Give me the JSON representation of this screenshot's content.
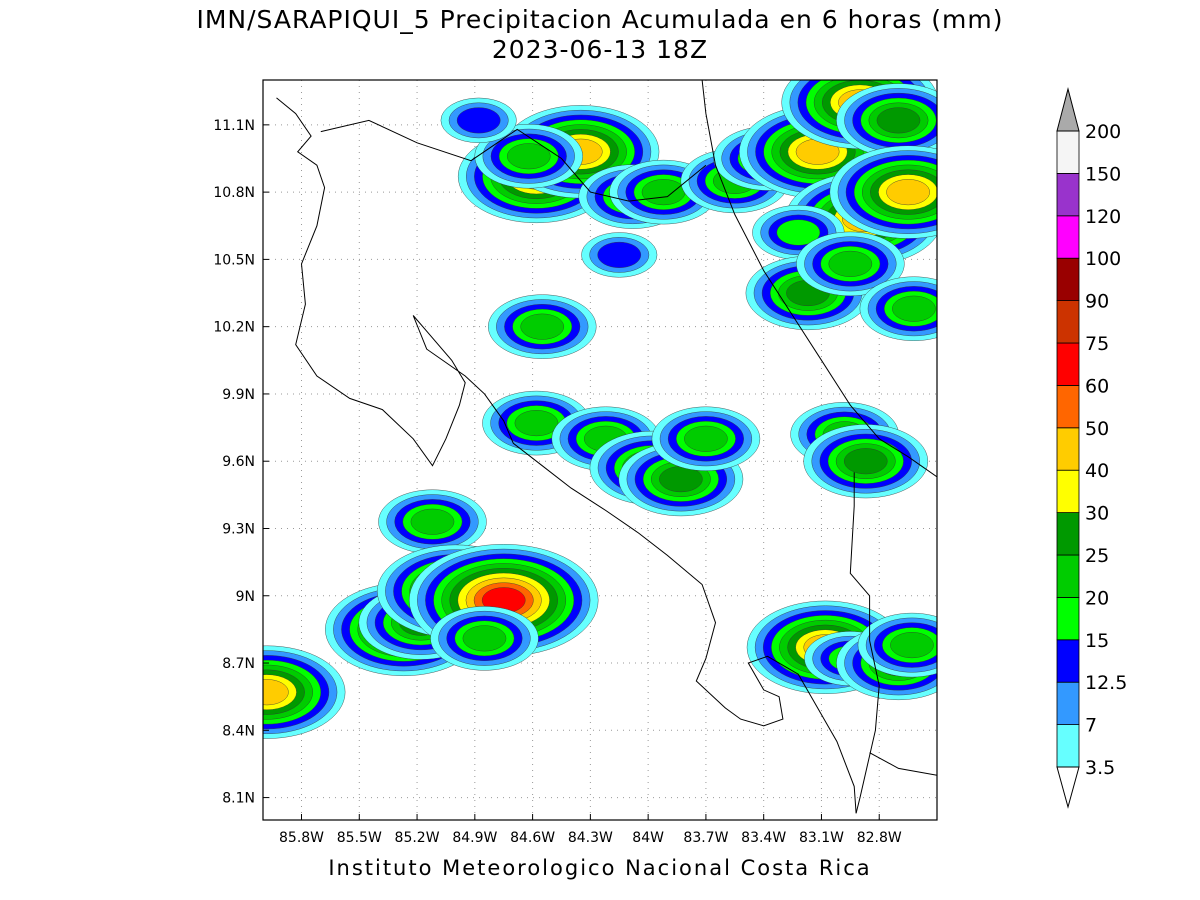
{
  "title": {
    "line1": "IMN/SARAPIQUI_5 Precipitacion Acumulada en 6 horas (mm)",
    "line2": "2023-06-13 18Z"
  },
  "footer": "Instituto Meteorologico Nacional Costa Rica",
  "map": {
    "lon_range": [
      -86.0,
      -82.5
    ],
    "lat_range": [
      8.0,
      11.3
    ],
    "lon_ticks": [
      {
        "value": -85.8,
        "label": "85.8W"
      },
      {
        "value": -85.5,
        "label": "85.5W"
      },
      {
        "value": -85.2,
        "label": "85.2W"
      },
      {
        "value": -84.9,
        "label": "84.9W"
      },
      {
        "value": -84.6,
        "label": "84.6W"
      },
      {
        "value": -84.3,
        "label": "84.3W"
      },
      {
        "value": -84.0,
        "label": "84W"
      },
      {
        "value": -83.7,
        "label": "83.7W"
      },
      {
        "value": -83.4,
        "label": "83.4W"
      },
      {
        "value": -83.1,
        "label": "83.1W"
      },
      {
        "value": -82.8,
        "label": "82.8W"
      }
    ],
    "lat_ticks": [
      {
        "value": 8.1,
        "label": "8.1N"
      },
      {
        "value": 8.4,
        "label": "8.4N"
      },
      {
        "value": 8.7,
        "label": "8.7N"
      },
      {
        "value": 9.0,
        "label": "9N"
      },
      {
        "value": 9.3,
        "label": "9.3N"
      },
      {
        "value": 9.6,
        "label": "9.6N"
      },
      {
        "value": 9.9,
        "label": "9.9N"
      },
      {
        "value": 10.2,
        "label": "10.2N"
      },
      {
        "value": 10.5,
        "label": "10.5N"
      },
      {
        "value": 10.8,
        "label": "10.8N"
      },
      {
        "value": 11.1,
        "label": "11.1N"
      }
    ],
    "coastline": [
      [
        -85.93,
        11.22
      ],
      [
        -85.83,
        11.15
      ],
      [
        -85.75,
        11.05
      ],
      [
        -85.82,
        10.98
      ],
      [
        -85.72,
        10.92
      ],
      [
        -85.68,
        10.82
      ],
      [
        -85.72,
        10.65
      ],
      [
        -85.8,
        10.48
      ],
      [
        -85.78,
        10.3
      ],
      [
        -85.83,
        10.12
      ],
      [
        -85.72,
        9.98
      ],
      [
        -85.55,
        9.88
      ],
      [
        -85.38,
        9.83
      ],
      [
        -85.22,
        9.7
      ],
      [
        -85.12,
        9.58
      ],
      [
        -85.05,
        9.7
      ],
      [
        -84.98,
        9.85
      ],
      [
        -84.95,
        9.95
      ],
      [
        -85.02,
        10.05
      ],
      [
        -85.15,
        10.18
      ],
      [
        -85.22,
        10.25
      ],
      [
        -85.15,
        10.1
      ],
      [
        -84.95,
        9.98
      ],
      [
        -84.85,
        9.9
      ],
      [
        -84.75,
        9.78
      ],
      [
        -84.7,
        9.68
      ],
      [
        -84.55,
        9.58
      ],
      [
        -84.4,
        9.48
      ],
      [
        -84.22,
        9.38
      ],
      [
        -84.05,
        9.28
      ],
      [
        -83.9,
        9.18
      ],
      [
        -83.72,
        9.05
      ],
      [
        -83.65,
        8.88
      ],
      [
        -83.7,
        8.72
      ],
      [
        -83.75,
        8.62
      ],
      [
        -83.6,
        8.5
      ],
      [
        -83.52,
        8.45
      ],
      [
        -83.4,
        8.42
      ],
      [
        -83.3,
        8.45
      ],
      [
        -83.32,
        8.55
      ],
      [
        -83.4,
        8.58
      ],
      [
        -83.48,
        8.7
      ],
      [
        -83.38,
        8.73
      ],
      [
        -83.22,
        8.65
      ],
      [
        -83.12,
        8.5
      ],
      [
        -83.02,
        8.35
      ],
      [
        -82.93,
        8.15
      ],
      [
        -82.92,
        8.03
      ]
    ],
    "border_north": [
      [
        -85.7,
        11.07
      ],
      [
        -85.45,
        11.12
      ],
      [
        -85.2,
        11.02
      ],
      [
        -84.92,
        10.94
      ],
      [
        -84.68,
        11.08
      ],
      [
        -84.45,
        10.95
      ],
      [
        -84.3,
        10.8
      ],
      [
        -84.1,
        10.76
      ],
      [
        -83.9,
        10.78
      ],
      [
        -83.7,
        10.92
      ]
    ],
    "caribbean_coast": [
      [
        -83.72,
        11.3
      ],
      [
        -83.7,
        11.15
      ],
      [
        -83.65,
        10.92
      ],
      [
        -83.55,
        10.7
      ],
      [
        -83.4,
        10.45
      ],
      [
        -83.25,
        10.25
      ],
      [
        -83.1,
        10.05
      ],
      [
        -82.95,
        9.85
      ],
      [
        -82.8,
        9.7
      ],
      [
        -82.65,
        9.62
      ],
      [
        -82.5,
        9.53
      ]
    ],
    "border_south": [
      [
        -82.93,
        9.55
      ],
      [
        -82.93,
        9.4
      ],
      [
        -82.95,
        9.1
      ],
      [
        -82.85,
        9.0
      ],
      [
        -82.85,
        8.8
      ],
      [
        -82.8,
        8.6
      ],
      [
        -82.82,
        8.4
      ],
      [
        -82.9,
        8.1
      ],
      [
        -82.92,
        8.03
      ]
    ],
    "chiriqui_coast": [
      [
        -82.5,
        8.2
      ],
      [
        -82.7,
        8.23
      ],
      [
        -82.85,
        8.3
      ]
    ],
    "precip_cells": [
      {
        "lon": -84.58,
        "lat": 10.87,
        "level": 40
      },
      {
        "lon": -84.35,
        "lat": 10.98,
        "level": 40
      },
      {
        "lon": -84.62,
        "lat": 10.96,
        "level": 20
      },
      {
        "lon": -84.88,
        "lat": 11.12,
        "level": 12.5
      },
      {
        "lon": -84.08,
        "lat": 10.78,
        "level": 20
      },
      {
        "lon": -83.92,
        "lat": 10.8,
        "level": 20
      },
      {
        "lon": -83.55,
        "lat": 10.85,
        "level": 20
      },
      {
        "lon": -83.38,
        "lat": 10.95,
        "level": 20
      },
      {
        "lon": -83.12,
        "lat": 10.98,
        "level": 40
      },
      {
        "lon": -82.9,
        "lat": 11.2,
        "level": 40
      },
      {
        "lon": -82.7,
        "lat": 11.12,
        "level": 25
      },
      {
        "lon": -82.88,
        "lat": 10.68,
        "level": 40
      },
      {
        "lon": -82.65,
        "lat": 10.8,
        "level": 40
      },
      {
        "lon": -83.22,
        "lat": 10.62,
        "level": 15
      },
      {
        "lon": -83.17,
        "lat": 10.35,
        "level": 25
      },
      {
        "lon": -82.95,
        "lat": 10.48,
        "level": 20
      },
      {
        "lon": -82.62,
        "lat": 10.28,
        "level": 20
      },
      {
        "lon": -84.15,
        "lat": 10.52,
        "level": 12.5
      },
      {
        "lon": -84.55,
        "lat": 10.2,
        "level": 20
      },
      {
        "lon": -84.58,
        "lat": 9.77,
        "level": 20
      },
      {
        "lon": -84.22,
        "lat": 9.7,
        "level": 20
      },
      {
        "lon": -83.98,
        "lat": 9.57,
        "level": 25
      },
      {
        "lon": -83.83,
        "lat": 9.52,
        "level": 25
      },
      {
        "lon": -83.7,
        "lat": 9.7,
        "level": 20
      },
      {
        "lon": -82.98,
        "lat": 9.72,
        "level": 20
      },
      {
        "lon": -82.87,
        "lat": 9.6,
        "level": 25
      },
      {
        "lon": -85.12,
        "lat": 9.33,
        "level": 20
      },
      {
        "lon": -85.27,
        "lat": 8.85,
        "level": 40
      },
      {
        "lon": -85.18,
        "lat": 8.88,
        "level": 25
      },
      {
        "lon": -85.0,
        "lat": 9.02,
        "level": 40
      },
      {
        "lon": -84.75,
        "lat": 8.98,
        "level": 60
      },
      {
        "lon": -84.85,
        "lat": 8.81,
        "level": 20
      },
      {
        "lon": -83.08,
        "lat": 8.77,
        "level": 40
      },
      {
        "lon": -82.95,
        "lat": 8.72,
        "level": 15
      },
      {
        "lon": -82.7,
        "lat": 8.7,
        "level": 25
      },
      {
        "lon": -82.63,
        "lat": 8.78,
        "level": 20
      },
      {
        "lon": -85.98,
        "lat": 8.57,
        "level": 40
      }
    ]
  },
  "colorbar": {
    "levels": [
      {
        "label": "3.5",
        "color": "#66ffff"
      },
      {
        "label": "7",
        "color": "#3399ff"
      },
      {
        "label": "12.5",
        "color": "#0000ff"
      },
      {
        "label": "15",
        "color": "#00ff00"
      },
      {
        "label": "20",
        "color": "#00cc00"
      },
      {
        "label": "25",
        "color": "#009900"
      },
      {
        "label": "30",
        "color": "#ffff00"
      },
      {
        "label": "40",
        "color": "#ffcc00"
      },
      {
        "label": "50",
        "color": "#ff6600"
      },
      {
        "label": "60",
        "color": "#ff0000"
      },
      {
        "label": "75",
        "color": "#cc3300"
      },
      {
        "label": "90",
        "color": "#990000"
      },
      {
        "label": "100",
        "color": "#ff00ff"
      },
      {
        "label": "120",
        "color": "#9933cc"
      },
      {
        "label": "150",
        "color": "#f5f5f5"
      },
      {
        "label": "200",
        "color": "#aaaaaa"
      }
    ]
  }
}
